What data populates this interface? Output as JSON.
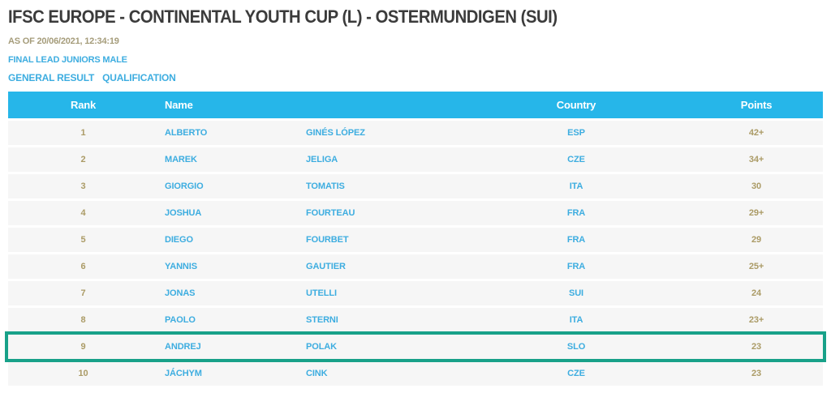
{
  "header": {
    "title": "IFSC EUROPE - CONTINENTAL YOUTH CUP (L) - OSTERMUNDIGEN (SUI)",
    "as_of": "AS OF 20/06/2021, 12:34:19",
    "category": "FINAL LEAD JUNIORS MALE"
  },
  "tabs": [
    {
      "label": "GENERAL RESULT"
    },
    {
      "label": "QUALIFICATION"
    }
  ],
  "table": {
    "columns": {
      "rank": "Rank",
      "name": "Name",
      "country": "Country",
      "points": "Points"
    },
    "rows": [
      {
        "rank": "1",
        "first": "ALBERTO",
        "last": "GINÉS LÓPEZ",
        "country": "ESP",
        "points": "42+",
        "highlighted": false
      },
      {
        "rank": "2",
        "first": "MAREK",
        "last": "JELIGA",
        "country": "CZE",
        "points": "34+",
        "highlighted": false
      },
      {
        "rank": "3",
        "first": "GIORGIO",
        "last": "TOMATIS",
        "country": "ITA",
        "points": "30",
        "highlighted": false
      },
      {
        "rank": "4",
        "first": "JOSHUA",
        "last": "FOURTEAU",
        "country": "FRA",
        "points": "29+",
        "highlighted": false
      },
      {
        "rank": "5",
        "first": "DIEGO",
        "last": "FOURBET",
        "country": "FRA",
        "points": "29",
        "highlighted": false
      },
      {
        "rank": "6",
        "first": "YANNIS",
        "last": "GAUTIER",
        "country": "FRA",
        "points": "25+",
        "highlighted": false
      },
      {
        "rank": "7",
        "first": "JONAS",
        "last": "UTELLI",
        "country": "SUI",
        "points": "24",
        "highlighted": false
      },
      {
        "rank": "8",
        "first": "PAOLO",
        "last": "STERNI",
        "country": "ITA",
        "points": "23+",
        "highlighted": false
      },
      {
        "rank": "9",
        "first": "ANDREJ",
        "last": "POLAK",
        "country": "SLO",
        "points": "23",
        "highlighted": true
      },
      {
        "rank": "10",
        "first": "JÁCHYM",
        "last": "CINK",
        "country": "CZE",
        "points": "23",
        "highlighted": false
      }
    ]
  },
  "colors": {
    "header_bar": "#26b6e9",
    "link_text": "#3dade0",
    "gold_text": "#ab9b66",
    "as_of_text": "#a59c7a",
    "highlight_border": "#18a189",
    "row_background": "#f6f6f6",
    "title_text": "#3b3b3b"
  }
}
